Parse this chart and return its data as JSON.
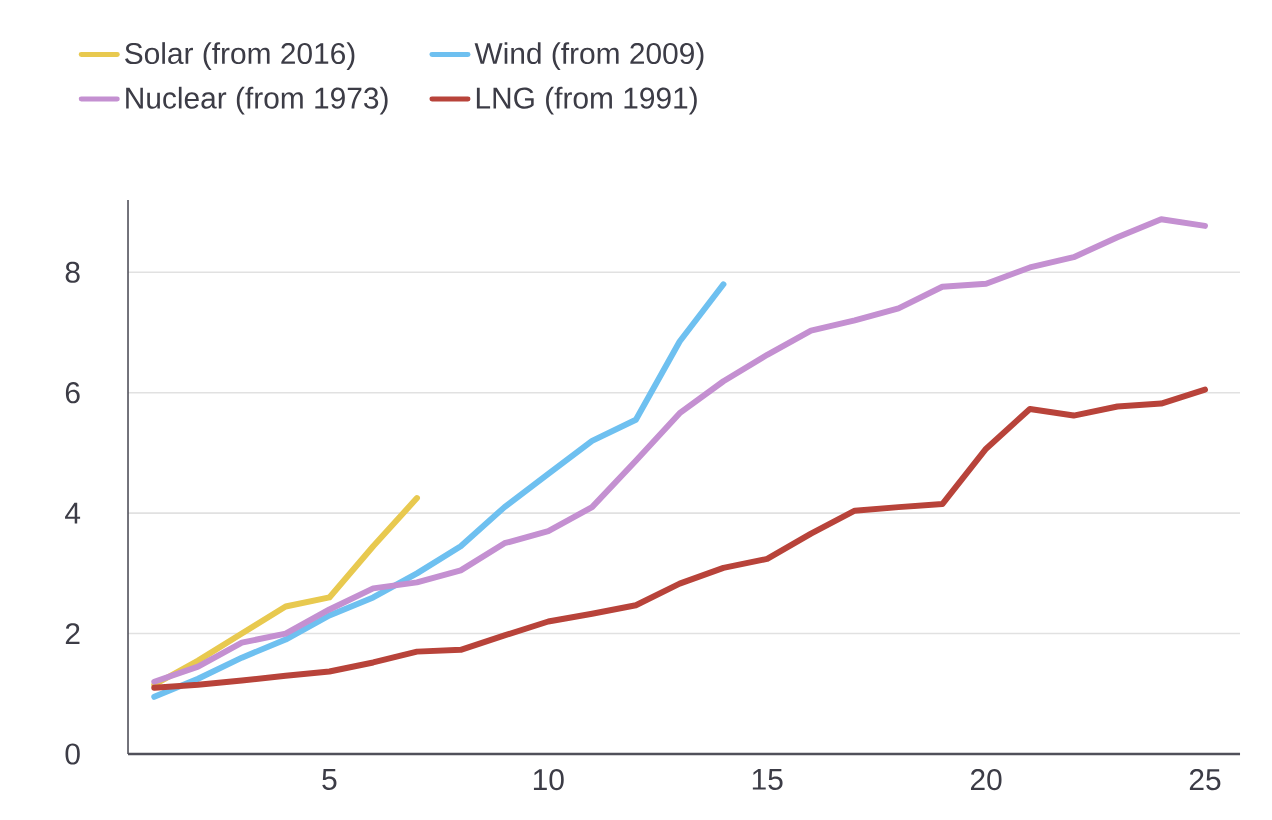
{
  "chart_data": {
    "type": "line",
    "x": [
      1,
      2,
      3,
      4,
      5,
      6,
      7,
      8,
      9,
      10,
      11,
      12,
      13,
      14,
      15,
      16,
      17,
      18,
      19,
      20,
      21,
      22,
      23,
      24,
      25
    ],
    "series": [
      {
        "name": "Solar (from 2016)",
        "color": "#e8c94f",
        "x": [
          1,
          2,
          3,
          4,
          5,
          6,
          7
        ],
        "values": [
          1.15,
          1.55,
          2.0,
          2.45,
          2.6,
          3.45,
          4.25
        ]
      },
      {
        "name": "Wind (from 2009)",
        "color": "#6ec0f0",
        "x": [
          1,
          2,
          3,
          4,
          5,
          6,
          7,
          8,
          9,
          10,
          11,
          12,
          13,
          14
        ],
        "values": [
          0.95,
          1.25,
          1.6,
          1.9,
          2.3,
          2.6,
          3.0,
          3.45,
          4.1,
          4.65,
          5.2,
          5.55,
          6.85,
          7.8
        ]
      },
      {
        "name": "Nuclear (from 1973)",
        "color": "#c490d1",
        "values": [
          1.2,
          1.45,
          1.85,
          2.0,
          2.4,
          2.75,
          2.85,
          3.05,
          3.5,
          3.7,
          4.1,
          4.87,
          5.66,
          6.19,
          6.63,
          7.03,
          7.2,
          7.4,
          7.76,
          7.81,
          8.08,
          8.25,
          8.58,
          8.88,
          8.77
        ]
      },
      {
        "name": "LNG (from 1991)",
        "color": "#b8433a",
        "values": [
          1.1,
          1.15,
          1.22,
          1.3,
          1.37,
          1.52,
          1.7,
          1.73,
          1.97,
          2.2,
          2.33,
          2.47,
          2.83,
          3.09,
          3.24,
          3.66,
          4.04,
          4.1,
          4.15,
          5.07,
          5.73,
          5.62,
          5.77,
          5.82,
          6.05
        ]
      }
    ],
    "xlim": [
      0.4,
      25.8
    ],
    "ylim": [
      0,
      9.2
    ],
    "xticks": [
      5,
      10,
      15,
      20,
      25
    ],
    "yticks": [
      0,
      2,
      4,
      6,
      8
    ],
    "grid": "y",
    "legend": "top left",
    "marker": "none",
    "line_style": "solid"
  }
}
